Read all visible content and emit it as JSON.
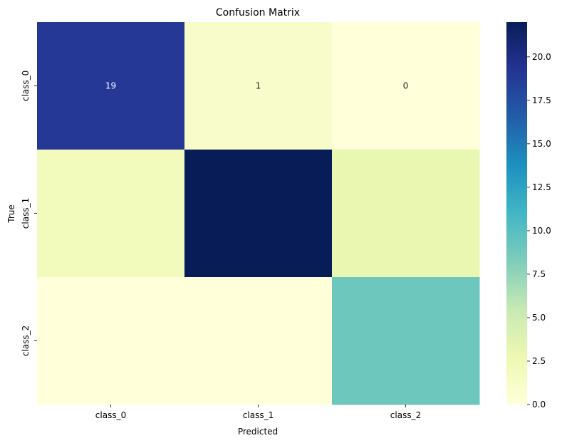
{
  "chart_data": {
    "type": "heatmap",
    "title": "Confusion Matrix",
    "xlabel": "Predicted",
    "ylabel": "True",
    "x_categories": [
      "class_0",
      "class_1",
      "class_2"
    ],
    "y_categories": [
      "class_0",
      "class_1",
      "class_2"
    ],
    "values": [
      [
        19,
        1,
        0
      ],
      [
        2,
        22,
        3
      ],
      [
        0,
        0,
        9
      ]
    ],
    "annotations": [
      [
        "19",
        "1",
        "0"
      ],
      [
        "",
        "",
        ""
      ],
      [
        "",
        "",
        ""
      ]
    ],
    "colormap": "YlGnBu",
    "vmin": 0,
    "vmax": 22,
    "colorbar_ticks": [
      "0.0",
      "2.5",
      "5.0",
      "7.5",
      "10.0",
      "12.5",
      "15.0",
      "17.5",
      "20.0"
    ],
    "colorbar_tick_values": [
      0,
      2.5,
      5,
      7.5,
      10,
      12.5,
      15,
      17.5,
      20
    ]
  }
}
